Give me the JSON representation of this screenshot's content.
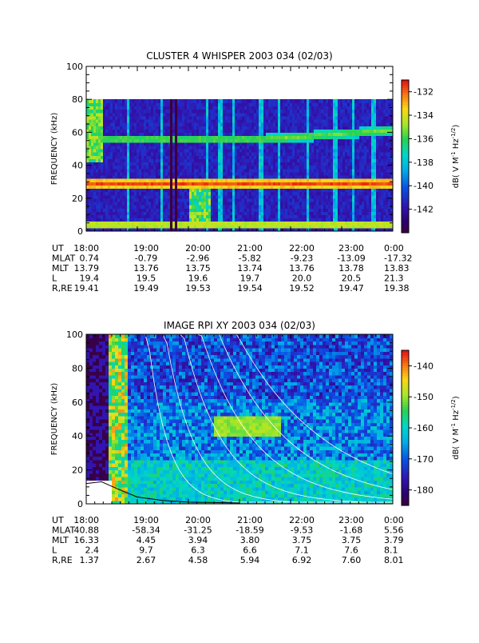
{
  "chart_data": [
    {
      "type": "heatmap",
      "title": "CLUSTER 4 WHISPER 2003 034 (02/03)",
      "ylabel": "FREQUENCY (kHz)",
      "ylim": [
        0,
        100
      ],
      "yticks": [
        "0",
        "20",
        "40",
        "60",
        "80",
        "100"
      ],
      "colorbar": {
        "label": "dB( V M⁻¹ Hz⁻¹′²)",
        "label_parts": [
          "dB( V M",
          "-1",
          " Hz",
          "-1/2",
          ")"
        ],
        "range": [
          -144,
          -131
        ],
        "ticks": [
          "-132",
          "-134",
          "-136",
          "-138",
          "-140",
          "-142"
        ],
        "colormap": "rainbow"
      },
      "data_ceiling_khz": 80,
      "x_range_hours": [
        18,
        24
      ],
      "features": {
        "background_db": -142,
        "bands": [
          {
            "freq_khz": 55,
            "db": -135.5
          },
          {
            "freq_khz": 28,
            "db": -132
          },
          {
            "freq_khz": 3,
            "db": -134
          }
        ],
        "dark_gaps_hours": [
          [
            19.6,
            19.68
          ],
          [
            19.72,
            19.74
          ]
        ],
        "bright_spikes_hours": [
          18.8,
          19.45,
          20.35,
          20.6,
          20.85,
          21.4,
          21.75,
          22.3,
          22.85,
          23.2,
          23.6
        ]
      },
      "ephemeris": {
        "row_labels": [
          "UT",
          "MLAT",
          "MLT",
          "L",
          "R,RE"
        ],
        "columns": [
          {
            "UT": "18:00",
            "MLAT": "0.74",
            "MLT": "13.79",
            "L": "19.4",
            "R,RE": "19.41"
          },
          {
            "UT": "19:00",
            "MLAT": "-0.79",
            "MLT": "13.76",
            "L": "19.5",
            "R,RE": "19.49"
          },
          {
            "UT": "20:00",
            "MLAT": "-2.96",
            "MLT": "13.75",
            "L": "19.6",
            "R,RE": "19.53"
          },
          {
            "UT": "21:00",
            "MLAT": "-5.82",
            "MLT": "13.74",
            "L": "19.7",
            "R,RE": "19.54"
          },
          {
            "UT": "22:00",
            "MLAT": "-9.23",
            "MLT": "13.76",
            "L": "20.0",
            "R,RE": "19.52"
          },
          {
            "UT": "23:00",
            "MLAT": "-13.09",
            "MLT": "13.78",
            "L": "20.5",
            "R,RE": "19.47"
          },
          {
            "UT": "0:00",
            "MLAT": "-17.32",
            "MLT": "13.83",
            "L": "21.3",
            "R,RE": "19.38"
          }
        ]
      }
    },
    {
      "type": "heatmap",
      "title": "IMAGE RPI XY 2003 034 (02/03)",
      "ylabel": "FREQUENCY (kHz)",
      "ylim": [
        0,
        100
      ],
      "yticks": [
        "0",
        "20",
        "40",
        "60",
        "80",
        "100"
      ],
      "colorbar": {
        "label": "dB( V M⁻¹ Hz⁻¹′²)",
        "label_parts": [
          "dB( V M",
          "-1",
          " Hz",
          "-1/2",
          ")"
        ],
        "range": [
          -185,
          -135
        ],
        "ticks": [
          "-140",
          "-150",
          "-160",
          "-170",
          "-180"
        ],
        "colormap": "rainbow"
      },
      "x_range_hours": [
        18,
        24
      ],
      "features": {
        "background_db": -167,
        "low_freq_enhancement_db": -160,
        "midband_enhancement": {
          "freq_khz": 45,
          "hours": [
            20.5,
            21.8
          ],
          "db": -152
        },
        "cutoff_curves": true,
        "plasma_frequency_curve_khz": [
          [
            18.0,
            12
          ],
          [
            18.3,
            13
          ],
          [
            18.6,
            9
          ],
          [
            19.0,
            4
          ],
          [
            19.5,
            2
          ],
          [
            20.0,
            1
          ],
          [
            21.0,
            0.5
          ]
        ]
      },
      "ephemeris": {
        "row_labels": [
          "UT",
          "MLAT",
          "MLT",
          "L",
          "R,RE"
        ],
        "columns": [
          {
            "UT": "18:00",
            "MLAT": "40.88",
            "MLT": "16.33",
            "L": "2.4",
            "R,RE": "1.37"
          },
          {
            "UT": "19:00",
            "MLAT": "-58.34",
            "MLT": "4.45",
            "L": "9.7",
            "R,RE": "2.67"
          },
          {
            "UT": "20:00",
            "MLAT": "-31.25",
            "MLT": "3.94",
            "L": "6.3",
            "R,RE": "4.58"
          },
          {
            "UT": "21:00",
            "MLAT": "-18.59",
            "MLT": "3.80",
            "L": "6.6",
            "R,RE": "5.94"
          },
          {
            "UT": "22:00",
            "MLAT": "-9.53",
            "MLT": "3.75",
            "L": "7.1",
            "R,RE": "6.92"
          },
          {
            "UT": "23:00",
            "MLAT": "-1.68",
            "MLT": "3.75",
            "L": "7.6",
            "R,RE": "7.60"
          },
          {
            "UT": "0:00",
            "MLAT": "5.56",
            "MLT": "3.79",
            "L": "8.1",
            "R,RE": "8.01"
          }
        ]
      }
    }
  ]
}
